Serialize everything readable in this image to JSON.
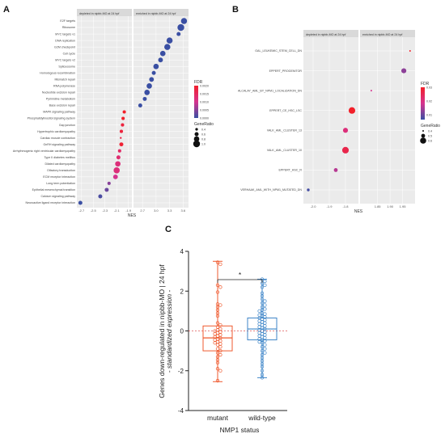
{
  "figure": {
    "panels": [
      "A",
      "B",
      "C"
    ]
  },
  "chart_data": [
    {
      "panel": "A",
      "type": "scatter",
      "facets": [
        "depleted in nipbb-MO at 24 hpf",
        "enriched in nipbb-MO at 24 hpf"
      ],
      "xlabel": "NES",
      "xticks": [
        "-2.7",
        "-2.5",
        "-2.3",
        "-2.1",
        "-1.9",
        "2.7",
        "3.0",
        "3.3",
        "3.6"
      ],
      "categories": [
        "E2F targets",
        "Ribosome",
        "MYC targets v1",
        "DNA replication",
        "G2M checkpoint",
        "Cell cycle",
        "MYC targets v2",
        "Spliceosome",
        "Homologous recombination",
        "Mismatch repair",
        "RNA polymerase",
        "Nucleotide excision repair",
        "Pyrimidine metabolism",
        "Base excision repair",
        "MAPK signaling pathway",
        "Phosphatidylinositol signaling system",
        "Gap junction",
        "Hypertrophic cardiomyopathy",
        "Cardiac muscle contraction",
        "GnRH signaling pathway",
        "Arrhythmogenic right ventricular cardiomyopathy",
        "Type II diabetes mellitus",
        "Dilated cardiomyopathy",
        "Olfactory transduction",
        "ECM receptor interaction",
        "Long term potentiation",
        "Epithelial mesenchymal transition",
        "Calcium signaling pathway",
        "Neuroactive ligand receptor interaction"
      ],
      "points": [
        {
          "facet": 1,
          "nes": 3.62,
          "fdr": 0.0,
          "ratio": 0.9
        },
        {
          "facet": 1,
          "nes": 3.55,
          "fdr": 0.0,
          "ratio": 1.0
        },
        {
          "facet": 1,
          "nes": 3.5,
          "fdr": 0.0,
          "ratio": 0.6
        },
        {
          "facet": 1,
          "nes": 3.3,
          "fdr": 0.0,
          "ratio": 0.9
        },
        {
          "facet": 1,
          "nes": 3.25,
          "fdr": 0.0,
          "ratio": 0.9
        },
        {
          "facet": 1,
          "nes": 3.15,
          "fdr": 0.0,
          "ratio": 0.8
        },
        {
          "facet": 1,
          "nes": 3.1,
          "fdr": 0.0,
          "ratio": 0.7
        },
        {
          "facet": 1,
          "nes": 3.0,
          "fdr": 0.0,
          "ratio": 0.8
        },
        {
          "facet": 1,
          "nes": 2.95,
          "fdr": 0.0,
          "ratio": 0.6
        },
        {
          "facet": 1,
          "nes": 2.9,
          "fdr": 0.0,
          "ratio": 0.7
        },
        {
          "facet": 1,
          "nes": 2.85,
          "fdr": 0.0,
          "ratio": 0.8
        },
        {
          "facet": 1,
          "nes": 2.8,
          "fdr": 0.0,
          "ratio": 0.8
        },
        {
          "facet": 1,
          "nes": 2.75,
          "fdr": 0.0,
          "ratio": 0.6
        },
        {
          "facet": 1,
          "nes": 2.65,
          "fdr": 0.0,
          "ratio": 0.6
        },
        {
          "facet": 0,
          "nes": -1.97,
          "fdr": 0.002,
          "ratio": 0.5
        },
        {
          "facet": 0,
          "nes": -1.99,
          "fdr": 0.002,
          "ratio": 0.5
        },
        {
          "facet": 0,
          "nes": -2.0,
          "fdr": 0.0018,
          "ratio": 0.5
        },
        {
          "facet": 0,
          "nes": -2.02,
          "fdr": 0.0018,
          "ratio": 0.5
        },
        {
          "facet": 0,
          "nes": -2.03,
          "fdr": 0.0017,
          "ratio": 0.3
        },
        {
          "facet": 0,
          "nes": -2.02,
          "fdr": 0.0019,
          "ratio": 0.6
        },
        {
          "facet": 0,
          "nes": -2.05,
          "fdr": 0.0014,
          "ratio": 0.5
        },
        {
          "facet": 0,
          "nes": -2.07,
          "fdr": 0.0013,
          "ratio": 0.6
        },
        {
          "facet": 0,
          "nes": -2.08,
          "fdr": 0.0012,
          "ratio": 0.8
        },
        {
          "facet": 0,
          "nes": -2.1,
          "fdr": 0.0012,
          "ratio": 0.9
        },
        {
          "facet": 0,
          "nes": -2.12,
          "fdr": 0.001,
          "ratio": 0.7
        },
        {
          "facet": 0,
          "nes": -2.23,
          "fdr": 0.0005,
          "ratio": 0.5
        },
        {
          "facet": 0,
          "nes": -2.27,
          "fdr": 0.0003,
          "ratio": 0.6
        },
        {
          "facet": 0,
          "nes": -2.38,
          "fdr": 0.0001,
          "ratio": 0.6
        },
        {
          "facet": 0,
          "nes": -2.72,
          "fdr": 0.0,
          "ratio": 0.6
        }
      ],
      "legend": {
        "fdr_title": "FDR",
        "fdr_ticks": [
          "0.0020",
          "0.0015",
          "0.0010",
          "0.0005",
          "0.0000"
        ],
        "size_title": "GeneRatio",
        "size_ticks": [
          "0.4",
          "0.6",
          "0.8",
          "1.0"
        ]
      },
      "colors": {
        "low": "#3a4fa3",
        "mid": "#d6338e",
        "high": "#f2202a"
      }
    },
    {
      "panel": "B",
      "type": "scatter",
      "facets": [
        "depleted in nipbb-MO at 24 hpf",
        "enriched in nipbb-MO at 24 hpf"
      ],
      "xlabel": "NES",
      "xticks": [
        "-2.0",
        "-1.9",
        "-1.8",
        "1.85",
        "1.90",
        "1.95"
      ],
      "categories": [
        "GAL_LEUKEMIC_STEM_CELL_DN",
        "EPPERT_PROGENITOR",
        "ALCALAY_AML_BY_NPM1_LOCALIZATION_DN",
        "EPPERT_CE_HSC_LSC",
        "VALK_AML_CLUSTER_13",
        "VALK_AML_CLUSTER_10",
        "EPPERT_HSC_R",
        "VERHAAK_AML_WITH_NPM1_MUTATED_DN"
      ],
      "points": [
        {
          "facet": 1,
          "nes": 1.98,
          "fdr": 0.03,
          "ratio": 0.4
        },
        {
          "facet": 1,
          "nes": 1.955,
          "fdr": 0.008,
          "ratio": 0.55
        },
        {
          "facet": 1,
          "nes": 1.825,
          "fdr": 0.015,
          "ratio": 0.4
        },
        {
          "facet": 0,
          "nes": -1.76,
          "fdr": 0.03,
          "ratio": 0.62
        },
        {
          "facet": 0,
          "nes": -1.8,
          "fdr": 0.018,
          "ratio": 0.55
        },
        {
          "facet": 0,
          "nes": -1.8,
          "fdr": 0.025,
          "ratio": 0.62
        },
        {
          "facet": 0,
          "nes": -1.86,
          "fdr": 0.012,
          "ratio": 0.5
        },
        {
          "facet": 0,
          "nes": -2.03,
          "fdr": 0.001,
          "ratio": 0.45
        }
      ],
      "legend": {
        "fdr_title": "FDR",
        "fdr_ticks": [
          "0.03",
          "0.02",
          "0.01"
        ],
        "size_title": "GeneRatio",
        "size_ticks": [
          "0.4",
          "0.5",
          "0.6"
        ]
      },
      "colors": {
        "low": "#3a4fa3",
        "mid": "#d6338e",
        "high": "#f2202a"
      }
    },
    {
      "panel": "C",
      "type": "box",
      "ylabel_lines": [
        "Genes down-regulated in nipbb-MO | 24 hpf",
        "- standardized expression -"
      ],
      "xlabel": "NMP1 status",
      "categories": [
        "mutant",
        "wild-type"
      ],
      "ylim": [
        -4,
        4
      ],
      "yticks": [
        -4,
        -2,
        0,
        2,
        4
      ],
      "significance": "*",
      "colors": {
        "mutant": "#ef5a2f",
        "wild-type": "#3f86c8",
        "zero_line": "#e05a5a"
      },
      "boxes": [
        {
          "name": "mutant",
          "min": -2.55,
          "q1": -1.0,
          "median": -0.35,
          "q3": 0.25,
          "max": 3.5
        },
        {
          "name": "wild-type",
          "min": -2.35,
          "q1": -0.45,
          "median": 0.1,
          "q3": 0.65,
          "max": 2.6
        }
      ],
      "points_mutant": [
        3.45,
        3.35,
        2.3,
        2.2,
        1.95,
        1.35,
        1.3,
        1.2,
        1.05,
        0.9,
        0.75,
        0.4,
        0.3,
        0.2,
        0.1,
        0.05,
        0.0,
        -0.05,
        -0.1,
        -0.15,
        -0.2,
        -0.25,
        -0.3,
        -0.35,
        -0.4,
        -0.45,
        -0.5,
        -0.55,
        -0.6,
        -0.65,
        -0.7,
        -0.8,
        -0.9,
        -1.0,
        -1.1,
        -1.2,
        -1.3,
        -1.45,
        -1.6,
        -1.9,
        -2.0,
        -2.5
      ],
      "points_wildtype": [
        2.6,
        2.5,
        2.4,
        2.3,
        2.2,
        1.9,
        1.75,
        1.6,
        1.5,
        1.4,
        1.3,
        1.2,
        1.1,
        1.05,
        1.0,
        0.9,
        0.85,
        0.8,
        0.75,
        0.7,
        0.65,
        0.6,
        0.55,
        0.5,
        0.45,
        0.4,
        0.35,
        0.3,
        0.25,
        0.2,
        0.15,
        0.1,
        0.05,
        0.0,
        -0.05,
        -0.1,
        -0.15,
        -0.2,
        -0.25,
        -0.3,
        -0.35,
        -0.4,
        -0.45,
        -0.5,
        -0.55,
        -0.6,
        -0.7,
        -0.8,
        -0.9,
        -1.0,
        -1.1,
        -1.2,
        -1.35,
        -1.5,
        -1.65,
        -1.8,
        -2.0,
        -2.2,
        -2.35
      ]
    }
  ]
}
